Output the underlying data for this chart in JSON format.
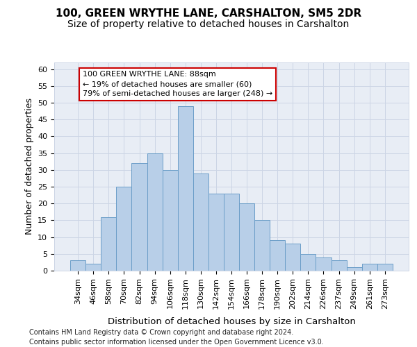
{
  "title1": "100, GREEN WRYTHE LANE, CARSHALTON, SM5 2DR",
  "title2": "Size of property relative to detached houses in Carshalton",
  "xlabel": "Distribution of detached houses by size in Carshalton",
  "ylabel": "Number of detached properties",
  "categories": [
    "34sqm",
    "46sqm",
    "58sqm",
    "70sqm",
    "82sqm",
    "94sqm",
    "106sqm",
    "118sqm",
    "130sqm",
    "142sqm",
    "154sqm",
    "166sqm",
    "178sqm",
    "190sqm",
    "202sqm",
    "214sqm",
    "226sqm",
    "237sqm",
    "249sqm",
    "261sqm",
    "273sqm"
  ],
  "values": [
    3,
    2,
    16,
    25,
    32,
    35,
    30,
    49,
    29,
    23,
    23,
    20,
    15,
    9,
    8,
    5,
    4,
    3,
    1,
    2,
    2
  ],
  "bar_color": "#b8cfe8",
  "bar_edge_color": "#6b9ec8",
  "annotation_line1": "100 GREEN WRYTHE LANE: 88sqm",
  "annotation_line2": "← 19% of detached houses are smaller (60)",
  "annotation_line3": "79% of semi-detached houses are larger (248) →",
  "annotation_box_color": "#ffffff",
  "annotation_box_edge_color": "#cc0000",
  "ylim": [
    0,
    62
  ],
  "yticks": [
    0,
    5,
    10,
    15,
    20,
    25,
    30,
    35,
    40,
    45,
    50,
    55,
    60
  ],
  "grid_color": "#ccd5e5",
  "background_color": "#e8edf5",
  "footer_line1": "Contains HM Land Registry data © Crown copyright and database right 2024.",
  "footer_line2": "Contains public sector information licensed under the Open Government Licence v3.0.",
  "title1_fontsize": 11,
  "title2_fontsize": 10,
  "xlabel_fontsize": 9.5,
  "ylabel_fontsize": 9,
  "tick_fontsize": 8,
  "annotation_fontsize": 8,
  "footer_fontsize": 7
}
